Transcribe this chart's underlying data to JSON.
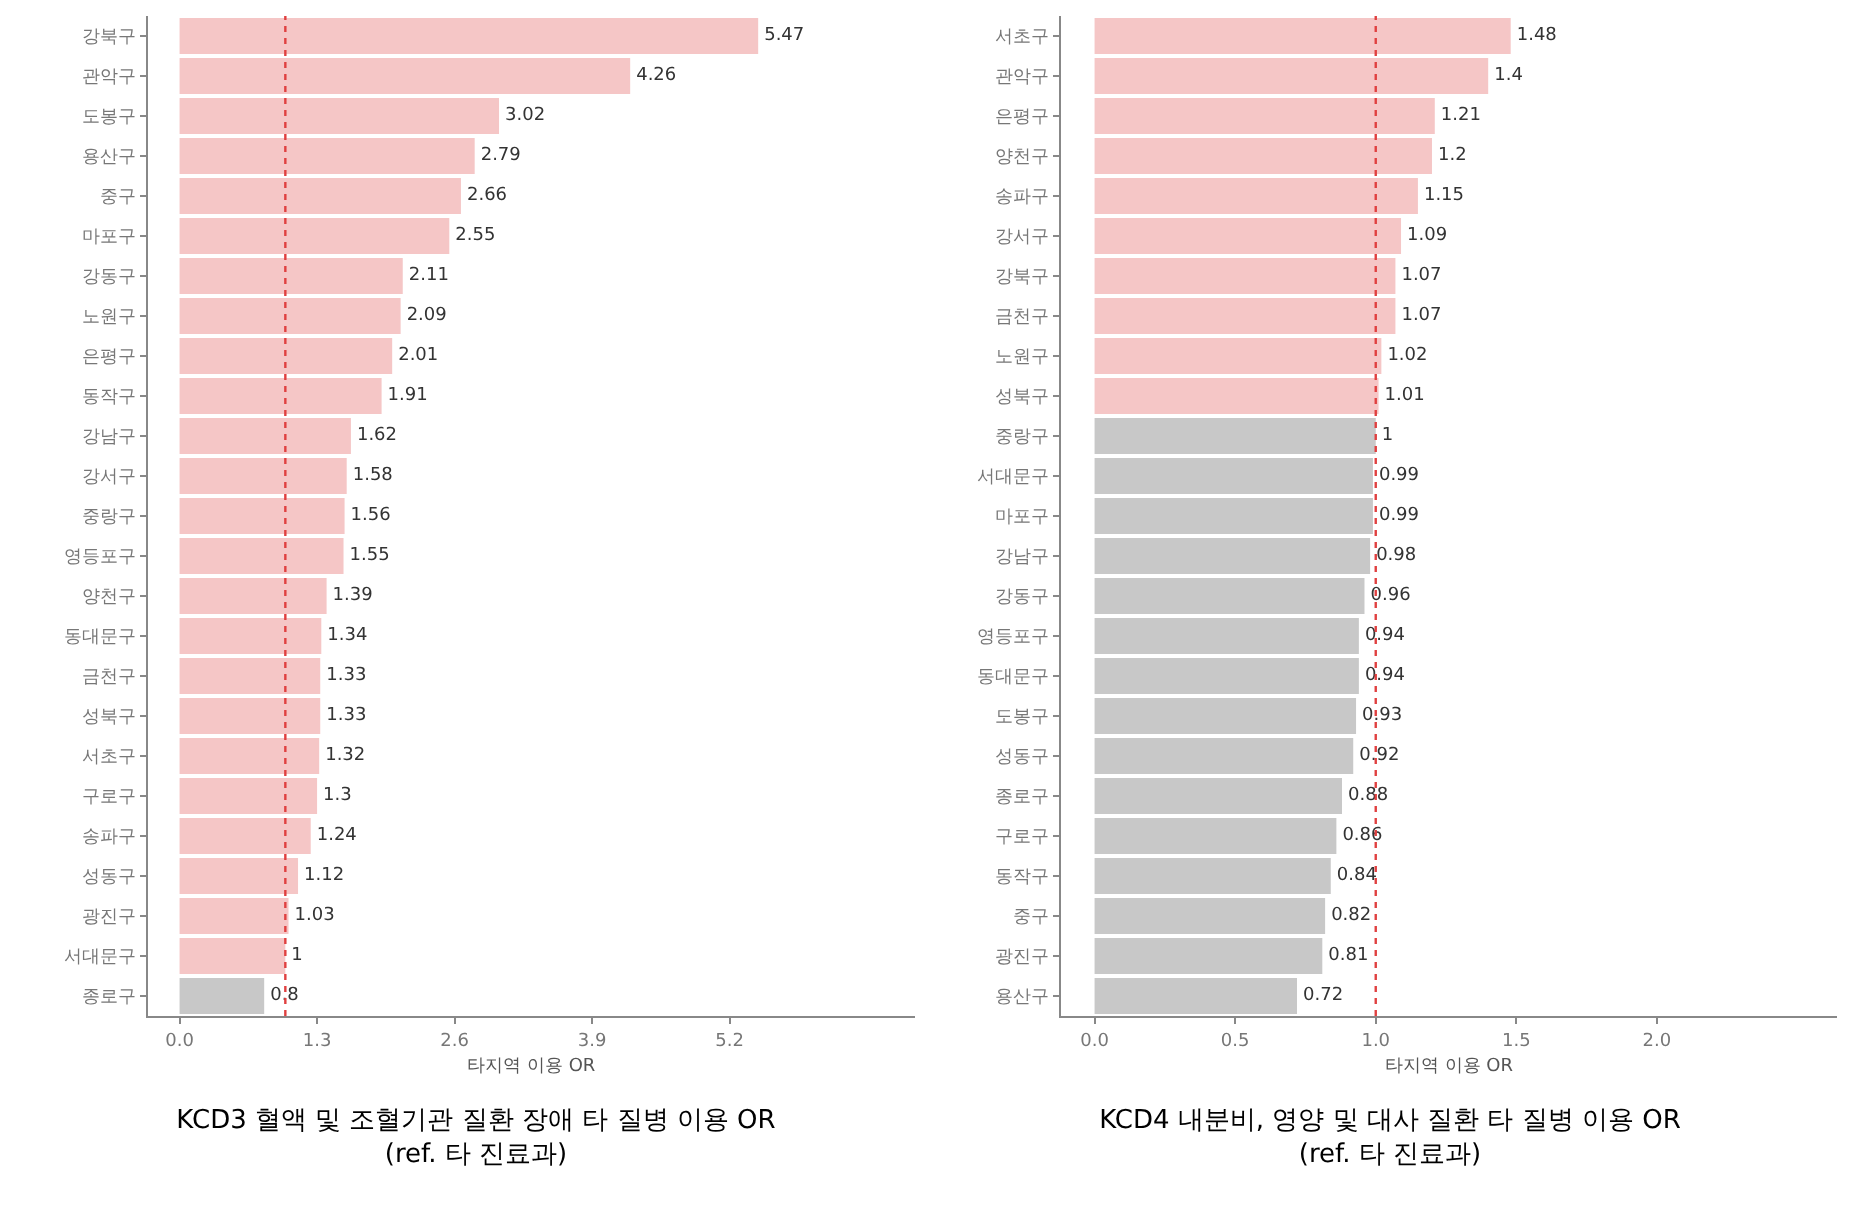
{
  "chart_data": [
    {
      "type": "bar",
      "orientation": "horizontal",
      "title": "KCD3 혈액 및 조혈기관 질환 장애 타 질병 이용 OR\n(ref. 타 진료과)",
      "xlabel": "타지역 이용 OR",
      "categories": [
        "강북구",
        "관악구",
        "도봉구",
        "용산구",
        "중구",
        "마포구",
        "강동구",
        "노원구",
        "은평구",
        "동작구",
        "강남구",
        "강서구",
        "중랑구",
        "영등포구",
        "양천구",
        "동대문구",
        "금천구",
        "성북구",
        "서초구",
        "구로구",
        "송파구",
        "성동구",
        "광진구",
        "서대문구",
        "종로구"
      ],
      "values": [
        5.47,
        4.26,
        3.02,
        2.79,
        2.66,
        2.55,
        2.11,
        2.09,
        2.01,
        1.91,
        1.62,
        1.58,
        1.56,
        1.55,
        1.39,
        1.34,
        1.33,
        1.33,
        1.32,
        1.3,
        1.24,
        1.12,
        1.03,
        1,
        0.8
      ],
      "colors": [
        "#f5c6c6",
        "#f5c6c6",
        "#f5c6c6",
        "#f5c6c6",
        "#f5c6c6",
        "#f5c6c6",
        "#f5c6c6",
        "#f5c6c6",
        "#f5c6c6",
        "#f5c6c6",
        "#f5c6c6",
        "#f5c6c6",
        "#f5c6c6",
        "#f5c6c6",
        "#f5c6c6",
        "#f5c6c6",
        "#f5c6c6",
        "#f5c6c6",
        "#f5c6c6",
        "#f5c6c6",
        "#f5c6c6",
        "#f5c6c6",
        "#f5c6c6",
        "#f5c6c6",
        "#c8c8c8"
      ],
      "xlim": [
        -0.3,
        6.95
      ],
      "xticks": [
        {
          "value": 0,
          "label": "0.0"
        },
        1.3,
        2.6,
        3.9,
        5.2
      ],
      "ref_lines": [
        {
          "axis": "x",
          "value": 1,
          "color": "#e04040",
          "line_style": "dotted"
        }
      ],
      "data_labels": true
    },
    {
      "type": "bar",
      "orientation": "horizontal",
      "title": "KCD4 내분비, 영양 및 대사 질환 타 질병 이용 OR\n(ref. 타 진료과)",
      "xlabel": "타지역 이용 OR",
      "categories": [
        "서초구",
        "관악구",
        "은평구",
        "양천구",
        "송파구",
        "강서구",
        "강북구",
        "금천구",
        "노원구",
        "성북구",
        "중랑구",
        "서대문구",
        "마포구",
        "강남구",
        "강동구",
        "영등포구",
        "동대문구",
        "도봉구",
        "성동구",
        "종로구",
        "구로구",
        "동작구",
        "중구",
        "광진구",
        "용산구"
      ],
      "values": [
        1.48,
        1.4,
        1.21,
        1.2,
        1.15,
        1.09,
        1.07,
        1.07,
        1.02,
        1.01,
        1,
        0.99,
        0.99,
        0.98,
        0.96,
        0.94,
        0.94,
        0.93,
        0.92,
        0.88,
        0.86,
        0.84,
        0.82,
        0.81,
        0.72
      ],
      "colors": [
        "#f5c6c6",
        "#f5c6c6",
        "#f5c6c6",
        "#f5c6c6",
        "#f5c6c6",
        "#f5c6c6",
        "#f5c6c6",
        "#f5c6c6",
        "#f5c6c6",
        "#f5c6c6",
        "#c8c8c8",
        "#c8c8c8",
        "#c8c8c8",
        "#c8c8c8",
        "#c8c8c8",
        "#c8c8c8",
        "#c8c8c8",
        "#c8c8c8",
        "#c8c8c8",
        "#c8c8c8",
        "#c8c8c8",
        "#c8c8c8",
        "#c8c8c8",
        "#c8c8c8",
        "#c8c8c8"
      ],
      "xlim": [
        -0.12,
        2.64
      ],
      "xticks": [
        {
          "value": 0,
          "label": "0.0"
        },
        0.5,
        {
          "value": 1,
          "label": "1.0"
        },
        1.5,
        {
          "value": 2,
          "label": "2.0"
        }
      ],
      "ref_lines": [
        {
          "axis": "x",
          "value": 1,
          "color": "#e04040",
          "line_style": "dotted"
        }
      ],
      "data_labels": true
    }
  ]
}
